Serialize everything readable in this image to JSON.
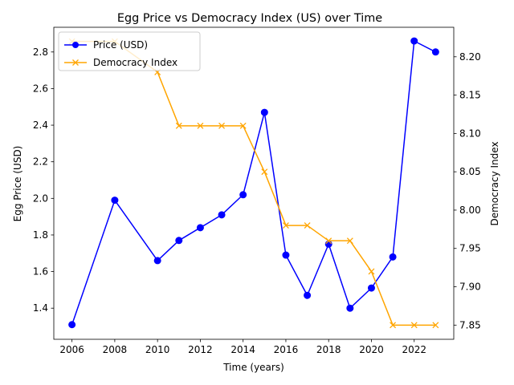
{
  "chart_data": {
    "type": "line",
    "title": "Egg Price vs Democracy Index (US) over Time",
    "xlabel": "Time (years)",
    "ylabel_left": "Egg Price (USD)",
    "ylabel_right": "Democracy Index",
    "x_ticks": [
      2006,
      2008,
      2010,
      2012,
      2014,
      2016,
      2018,
      2020,
      2022
    ],
    "y_left_ticks": [
      "1.4",
      "1.6",
      "1.8",
      "2.0",
      "2.2",
      "2.4",
      "2.6",
      "2.8"
    ],
    "y_right_ticks": [
      "7.85",
      "7.90",
      "7.95",
      "8.00",
      "8.05",
      "8.10",
      "8.15",
      "8.20"
    ],
    "xlim": [
      2005.15,
      2023.85
    ],
    "ylim_left": [
      1.23,
      2.935
    ],
    "ylim_right": [
      7.8315,
      8.2385
    ],
    "legend_position": "upper-left",
    "series": [
      {
        "name": "Price (USD)",
        "axis": "left",
        "color": "#0000ff",
        "marker": "circle",
        "x": [
          2006,
          2008,
          2010,
          2011,
          2012,
          2013,
          2014,
          2015,
          2016,
          2017,
          2018,
          2019,
          2020,
          2021,
          2022,
          2023
        ],
        "y": [
          1.31,
          1.99,
          1.66,
          1.77,
          1.84,
          1.91,
          2.02,
          2.47,
          1.69,
          1.47,
          1.75,
          1.4,
          1.51,
          1.68,
          2.86,
          2.8
        ]
      },
      {
        "name": "Democracy Index",
        "axis": "right",
        "color": "#ffa500",
        "marker": "x",
        "x": [
          2006,
          2008,
          2010,
          2011,
          2012,
          2013,
          2014,
          2015,
          2016,
          2017,
          2018,
          2019,
          2020,
          2021,
          2022,
          2023
        ],
        "y": [
          8.22,
          8.22,
          8.18,
          8.11,
          8.11,
          8.11,
          8.11,
          8.05,
          7.98,
          7.98,
          7.96,
          7.96,
          7.92,
          7.85,
          7.85,
          7.85
        ]
      }
    ]
  }
}
